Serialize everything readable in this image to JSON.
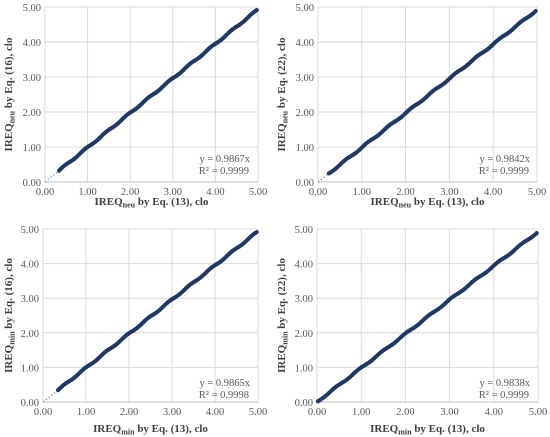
{
  "chart_data": [
    {
      "type": "scatter",
      "xlabel": {
        "base": "IREQ",
        "sub": "neu",
        "rest": " by Eq. (13), clo"
      },
      "ylabel": {
        "base": "IREQ",
        "sub": "neu",
        "rest": " by Eq. (16), clo"
      },
      "xlim": [
        0,
        5
      ],
      "ylim": [
        0,
        5
      ],
      "x_ticks": [
        "0.00",
        "1.00",
        "2.00",
        "3.00",
        "4.00",
        "5.00"
      ],
      "y_ticks": [
        "0.00",
        "1.00",
        "2.00",
        "3.00",
        "4.00",
        "5.00"
      ],
      "grid": true,
      "x_data_range": [
        0.33,
        4.97
      ],
      "slope": 0.9867,
      "equation": "y = 0.9867x",
      "r2": "R² = 0.9999",
      "trendline_from_origin": true
    },
    {
      "type": "scatter",
      "xlabel": {
        "base": "IREQ",
        "sub": "neu",
        "rest": " by Eq. (13), clo"
      },
      "ylabel": {
        "base": "IREQ",
        "sub": "neu",
        "rest": " by Eq. (22), clo"
      },
      "xlim": [
        0,
        5
      ],
      "ylim": [
        0,
        5
      ],
      "x_ticks": [
        "0.00",
        "1.00",
        "2.00",
        "3.00",
        "4.00",
        "5.00"
      ],
      "y_ticks": [
        "0.00",
        "1.00",
        "2.00",
        "3.00",
        "4.00",
        "5.00"
      ],
      "grid": true,
      "x_data_range": [
        0.25,
        4.97
      ],
      "slope": 0.9842,
      "equation": "y = 0.9842x",
      "r2": "R² = 0.9999",
      "trendline_from_origin": true
    },
    {
      "type": "scatter",
      "xlabel": {
        "base": "IREQ",
        "sub": "min",
        "rest": " by Eq. (13), clo"
      },
      "ylabel": {
        "base": "IREQ",
        "sub": "min",
        "rest": " by Eq. (16), clo"
      },
      "xlim": [
        0,
        5
      ],
      "ylim": [
        0,
        5
      ],
      "x_ticks": [
        "0.00",
        "1.00",
        "2.00",
        "3.00",
        "4.00",
        "5.00"
      ],
      "y_ticks": [
        "0.00",
        "1.00",
        "2.00",
        "3.00",
        "4.00",
        "5.00"
      ],
      "grid": true,
      "x_data_range": [
        0.35,
        4.97
      ],
      "slope": 0.9865,
      "equation": "y = 0.9865x",
      "r2": "R² = 0.9998",
      "trendline_from_origin": true
    },
    {
      "type": "scatter",
      "xlabel": {
        "base": "IREQ",
        "sub": "min",
        "rest": " by Eq. (13), clo"
      },
      "ylabel": {
        "base": "IREQ",
        "sub": "min",
        "rest": " by Eq. (22), clo"
      },
      "xlim": [
        0,
        5
      ],
      "ylim": [
        0,
        5
      ],
      "x_ticks": [
        "0.00",
        "1.00",
        "2.00",
        "3.00",
        "4.00",
        "5.00"
      ],
      "y_ticks": [
        "0.00",
        "1.00",
        "2.00",
        "3.00",
        "4.00",
        "5.00"
      ],
      "grid": true,
      "x_data_range": [
        0.02,
        4.97
      ],
      "slope": 0.9838,
      "equation": "y = 0.9838x",
      "r2": "R² = 0.9999",
      "trendline_from_origin": true
    }
  ],
  "colors": {
    "marker": "#1f3864",
    "trendline": "#5b9bd5",
    "grid": "#d9d9d9"
  }
}
